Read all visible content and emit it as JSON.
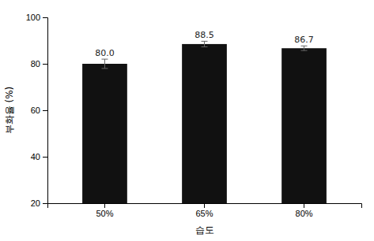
{
  "chart_data": {
    "type": "bar",
    "categories": [
      "50%",
      "65%",
      "80%"
    ],
    "values": [
      80.0,
      88.5,
      86.7
    ],
    "errors": [
      2.0,
      1.2,
      1.0
    ],
    "value_labels": [
      "80.0",
      "88.5",
      "86.7"
    ],
    "data_labels": true,
    "color": "#111111",
    "xlabel": "습도",
    "ylabel": "부화율 (%)",
    "ylim": [
      20,
      100
    ],
    "yticks": [
      20,
      40,
      60,
      80,
      100
    ],
    "grid": false
  }
}
